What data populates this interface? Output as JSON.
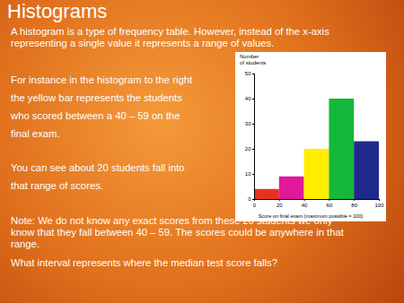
{
  "slide": {
    "title": "Histograms",
    "intro": [
      "A histogram is a type of frequency table. However, instead of the x-axis",
      "representing a single value it represents a range of values."
    ],
    "example": [
      "For instance in the histogram to the right",
      "the yellow bar represents the students",
      "who scored between a 40 – 59 on the",
      "final exam."
    ],
    "estimate": [
      "You can see about 20 students fall into",
      "that range of scores."
    ],
    "note": [
      "Note: We do not know any exact scores from these 20 students we only",
      "know that they fall between 40 – 59. The scores could be anywhere in that",
      "range."
    ],
    "question": "What interval represents where the median test score falls?"
  },
  "chart_data": {
    "type": "histogram",
    "x_label": "Score on final exam (maximum possible = 100)",
    "y_label": "Number of students",
    "bins": [
      0,
      20,
      40,
      60,
      80,
      100
    ],
    "values": [
      4,
      9,
      20,
      40,
      23
    ],
    "colors": [
      "#e8321e",
      "#e0189a",
      "#ffee00",
      "#14b83a",
      "#1f2a8c"
    ],
    "xlim": [
      0,
      100
    ],
    "ylim": [
      0,
      50
    ],
    "xticks": [
      0,
      20,
      40,
      60,
      80,
      100
    ],
    "yticks": [
      0,
      10,
      20,
      30,
      40,
      50
    ]
  }
}
